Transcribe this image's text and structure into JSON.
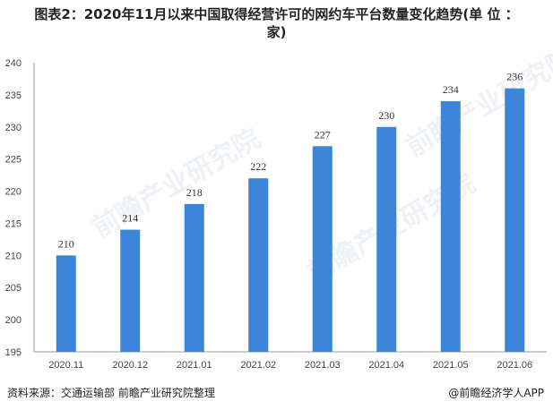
{
  "title_line1": "图表2：2020年11月以来中国取得经营许可的网约车平台数量变化趋势(单 位 ：",
  "title_line2": "家)",
  "footer_source": "资料来源：交通运输部 前瞻产业研究院整理",
  "footer_brand": "@前瞻经济学人APP",
  "watermark_text": "前瞻产业研究院",
  "colors": {
    "bar": "#3d85d8",
    "axis": "#999999"
  },
  "chart_data": {
    "type": "bar",
    "categories": [
      "2020.11",
      "2020.12",
      "2021.01",
      "2021.02",
      "2021.03",
      "2021.04",
      "2021.05",
      "2021.06"
    ],
    "values": [
      210,
      214,
      218,
      222,
      227,
      230,
      234,
      236
    ],
    "ylim": [
      195,
      240
    ],
    "yticks": [
      195,
      200,
      205,
      210,
      215,
      220,
      225,
      230,
      235,
      240
    ],
    "xlabel": "",
    "ylabel": "",
    "grid": false
  }
}
